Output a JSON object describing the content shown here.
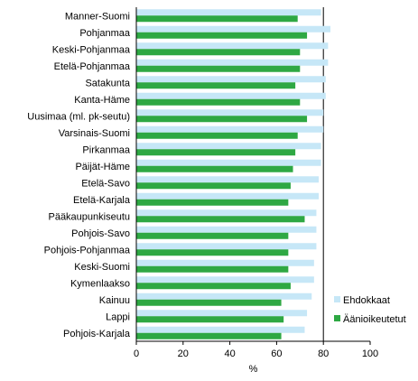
{
  "chart_data": {
    "type": "bar",
    "orientation": "horizontal",
    "categories": [
      "Manner-Suomi",
      "Pohjanmaa",
      "Keski-Pohjanmaa",
      "Etelä-Pohjanmaa",
      "Satakunta",
      "Kanta-Häme",
      "Uusimaa (ml. pk-seutu)",
      "Varsinais-Suomi",
      "Pirkanmaa",
      "Päijät-Häme",
      "Etelä-Savo",
      "Etelä-Karjala",
      "Pääkaupunkiseutu",
      "Pohjois-Savo",
      "Pohjois-Pohjanmaa",
      "Keski-Suomi",
      "Kymenlaakso",
      "Kainuu",
      "Lappi",
      "Pohjois-Karjala"
    ],
    "series": [
      {
        "name": "Ehdokkaat",
        "color": "#c6e7f7",
        "values": [
          79,
          83,
          82,
          82,
          81,
          81,
          80,
          80,
          79,
          79,
          78,
          78,
          77,
          77,
          77,
          76,
          76,
          75,
          73,
          72
        ]
      },
      {
        "name": "Äänioikeutetut",
        "color": "#2ea843",
        "values": [
          69,
          73,
          70,
          70,
          68,
          70,
          73,
          69,
          68,
          67,
          66,
          65,
          72,
          65,
          65,
          65,
          66,
          62,
          63,
          62
        ]
      }
    ],
    "xlabel": "%",
    "xlim": [
      0,
      100
    ],
    "xticks": [
      0,
      20,
      40,
      60,
      80,
      100
    ],
    "grid": "vertical line at 80",
    "legend": "right"
  }
}
